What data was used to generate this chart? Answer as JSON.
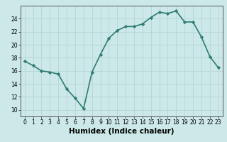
{
  "title": "",
  "xlabel": "Humidex (Indice chaleur)",
  "x": [
    0,
    1,
    2,
    3,
    4,
    5,
    6,
    7,
    8,
    9,
    10,
    11,
    12,
    13,
    14,
    15,
    16,
    17,
    18,
    19,
    20,
    21,
    22,
    23
  ],
  "y": [
    17.5,
    16.8,
    16.0,
    15.8,
    15.5,
    13.2,
    11.8,
    10.2,
    15.8,
    18.5,
    21.0,
    22.2,
    22.8,
    22.8,
    23.2,
    24.2,
    25.0,
    24.8,
    25.2,
    23.5,
    23.5,
    21.2,
    18.2,
    16.5
  ],
  "line_color": "#2e7d6e",
  "marker": "D",
  "marker_size": 2.2,
  "linewidth": 1.2,
  "ylim": [
    9,
    26
  ],
  "xlim": [
    -0.5,
    23.5
  ],
  "yticks": [
    10,
    12,
    14,
    16,
    18,
    20,
    22,
    24
  ],
  "xticks": [
    0,
    1,
    2,
    3,
    4,
    5,
    6,
    7,
    8,
    9,
    10,
    11,
    12,
    13,
    14,
    15,
    16,
    17,
    18,
    19,
    20,
    21,
    22,
    23
  ],
  "bg_color": "#cce8e8",
  "grid_color": "#b8d8d8",
  "tick_fontsize": 5.5,
  "xlabel_fontsize": 7.5
}
